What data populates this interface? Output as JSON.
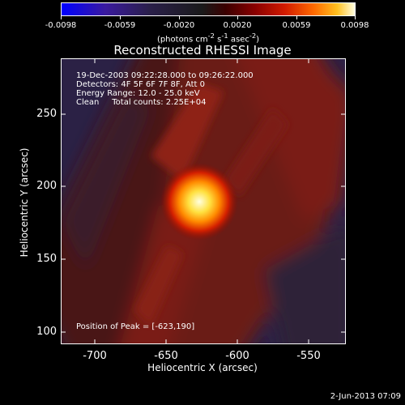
{
  "colorbar": {
    "ticks": [
      "-0.0098",
      "-0.0059",
      "-0.0020",
      "0.0020",
      "0.0059",
      "0.0098"
    ],
    "unit_html": "(photons cm<sup>-2</sup> s<sup>-1</sup> asec<sup>-2</sup>)"
  },
  "title": "Reconstructed RHESSI Image",
  "info": {
    "line1": "19-Dec-2003 09:22:28.000 to 09:26:22.000",
    "line2": "Detectors: 4F 5F 6F 7F 8F, Att 0",
    "line3": "Energy Range: 12.0 - 25.0 keV",
    "line4": "Clean     Total counts: 2.25E+04",
    "peak": "Position of Peak = [-623,190]"
  },
  "axes": {
    "x_ticks": [
      "-700",
      "-650",
      "-600",
      "-550"
    ],
    "y_ticks": [
      "250",
      "200",
      "150",
      "100"
    ],
    "xlabel": "Heliocentric X (arcsec)",
    "ylabel": "Heliocentric Y (arcsec)"
  },
  "datestamp": "2-Jun-2013 07:09",
  "colors": {
    "background": "#000000",
    "map_low": "#2a1f4a",
    "map_mid": "#8a1a10",
    "peak": "#ffffe0"
  }
}
